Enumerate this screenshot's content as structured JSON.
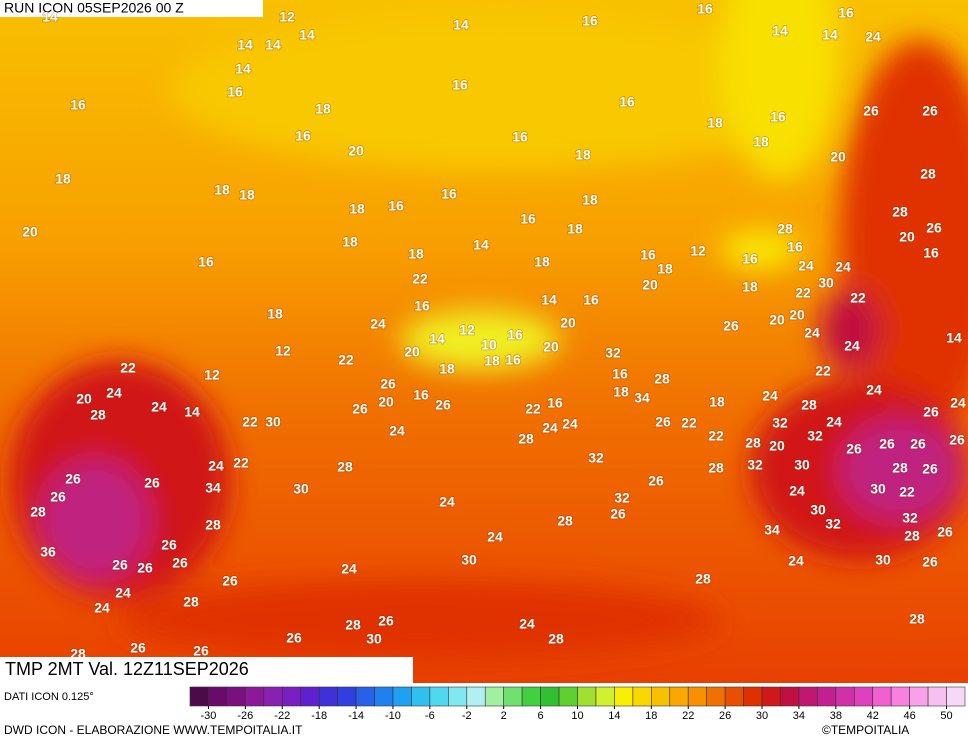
{
  "header": {
    "run": "RUN ICON 05SEP2026 00 Z",
    "validity": "TMP 2MT Val. 12Z11SEP2026"
  },
  "temperature_labels": [
    14,
    12,
    14,
    14,
    14,
    14,
    16,
    16,
    14,
    16,
    14,
    24,
    14,
    16,
    16,
    16,
    16,
    18,
    16,
    16,
    18,
    16,
    18,
    26,
    26,
    20,
    18,
    20,
    18,
    18,
    18,
    16,
    28,
    18,
    16,
    18,
    16,
    20,
    18,
    18,
    14,
    28,
    28,
    26,
    20,
    16,
    18,
    18,
    16,
    12,
    16,
    16,
    24,
    24,
    16,
    22,
    20,
    18,
    18,
    22,
    30,
    22,
    18,
    16,
    14,
    16,
    20,
    20,
    24,
    12,
    12,
    20,
    26,
    24,
    14,
    14,
    10,
    16,
    20,
    22,
    18,
    16,
    20,
    32,
    24,
    22,
    12,
    18,
    16,
    28,
    22,
    26,
    24,
    20,
    18,
    34,
    24,
    26,
    20,
    16,
    26,
    24,
    14,
    18,
    24,
    28,
    28,
    26,
    24,
    22,
    30,
    24,
    22,
    16,
    22,
    22,
    24,
    24,
    26,
    24,
    32,
    28,
    32,
    28,
    26,
    26,
    26,
    26,
    20,
    24,
    22,
    28,
    32,
    28,
    32,
    30,
    28,
    26,
    26,
    26,
    34,
    30,
    26,
    24,
    30,
    22,
    26,
    24,
    32,
    30,
    28,
    26,
    28,
    32,
    32,
    28,
    24,
    28,
    26,
    26,
    36,
    34,
    30,
    30,
    26,
    26,
    26,
    26,
    24,
    24,
    26,
    28,
    24,
    28,
    24,
    26,
    28,
    28,
    26,
    30,
    28,
    24,
    26,
    26,
    28
  ],
  "colorbar": {
    "range": [
      -32,
      52
    ],
    "colors": [
      "#4b0a4b",
      "#6a0a6a",
      "#7a1080",
      "#8a1a9a",
      "#8a20b0",
      "#7a20c0",
      "#6020d0",
      "#4030d8",
      "#3040e0",
      "#2860e8",
      "#2080f0",
      "#20a0f0",
      "#30c0f0",
      "#50d8f0",
      "#80e8f0",
      "#b0f0f0",
      "#a0f0a0",
      "#70e070",
      "#40d040",
      "#30c030",
      "#60d030",
      "#a0e030",
      "#d0f030",
      "#f8f000",
      "#f8d800",
      "#f8c000",
      "#f8a800",
      "#f89000",
      "#f07000",
      "#e85000",
      "#e03000",
      "#d01818",
      "#c01040",
      "#c01870",
      "#c02090",
      "#d030a8",
      "#e040c0",
      "#f060d0",
      "#f880e0",
      "#f8a0e8",
      "#f8c0f0",
      "#f8d8f8"
    ],
    "ticks": [
      -30,
      -26,
      -22,
      -18,
      -14,
      -10,
      -6,
      -2,
      2,
      6,
      10,
      14,
      18,
      22,
      26,
      30,
      34,
      38,
      42,
      46,
      50
    ]
  },
  "footer": {
    "data_source": "DATI ICON 0.125°",
    "credits": "DWD ICON - ELABORAZIONE WWW.TEMPOITALIA.IT",
    "copyright": "©TEMPOITALIA"
  }
}
